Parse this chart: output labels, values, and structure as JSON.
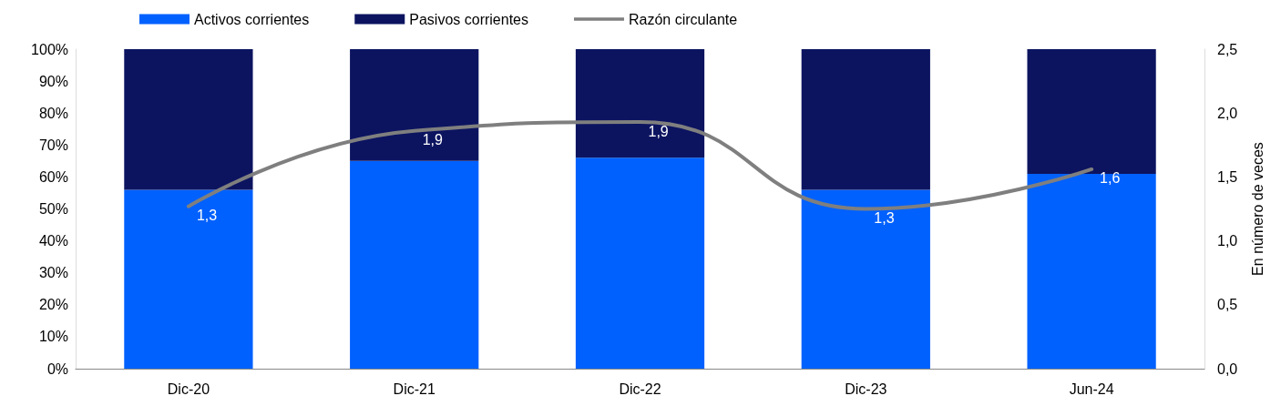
{
  "chart_data": {
    "type": "bar",
    "stacked": true,
    "y2label": "En número de veces",
    "categories": [
      "Dic-20",
      "Dic-21",
      "Dic-22",
      "Dic-23",
      "Jun-24"
    ],
    "series": [
      {
        "name": "Activos corrientes",
        "color": "#0061fe",
        "values": [
          56,
          65,
          66,
          56,
          61
        ]
      },
      {
        "name": "Pasivos corrientes",
        "color": "#0c1460",
        "values": [
          44,
          35,
          34,
          44,
          39
        ]
      },
      {
        "name": "Razón circulante",
        "type": "line",
        "axis": "y2",
        "color": "#7f7f7f",
        "marker": "none",
        "values": [
          1.27,
          1.86,
          1.93,
          1.25,
          1.56
        ],
        "value_labels": [
          "1,3",
          "1,9",
          "1,9",
          "1,3",
          "1,6"
        ]
      }
    ],
    "ylim": [
      0,
      100
    ],
    "yticks": [
      {
        "value": 0,
        "label": "0%"
      },
      {
        "value": 10,
        "label": "10%"
      },
      {
        "value": 20,
        "label": "20%"
      },
      {
        "value": 30,
        "label": "30%"
      },
      {
        "value": 40,
        "label": "40%"
      },
      {
        "value": 50,
        "label": "50%"
      },
      {
        "value": 60,
        "label": "60%"
      },
      {
        "value": 70,
        "label": "70%"
      },
      {
        "value": 80,
        "label": "80%"
      },
      {
        "value": 90,
        "label": "90%"
      },
      {
        "value": 100,
        "label": "100%"
      }
    ],
    "y2lim": [
      0,
      2.5
    ],
    "y2ticks": [
      {
        "value": 0,
        "label": "0,0"
      },
      {
        "value": 0.5,
        "label": "0,5"
      },
      {
        "value": 1,
        "label": "1,0"
      },
      {
        "value": 1.5,
        "label": "1,5"
      },
      {
        "value": 2,
        "label": "2,0"
      },
      {
        "value": 2.5,
        "label": "2,5"
      }
    ],
    "grid": false,
    "legend": "top"
  }
}
